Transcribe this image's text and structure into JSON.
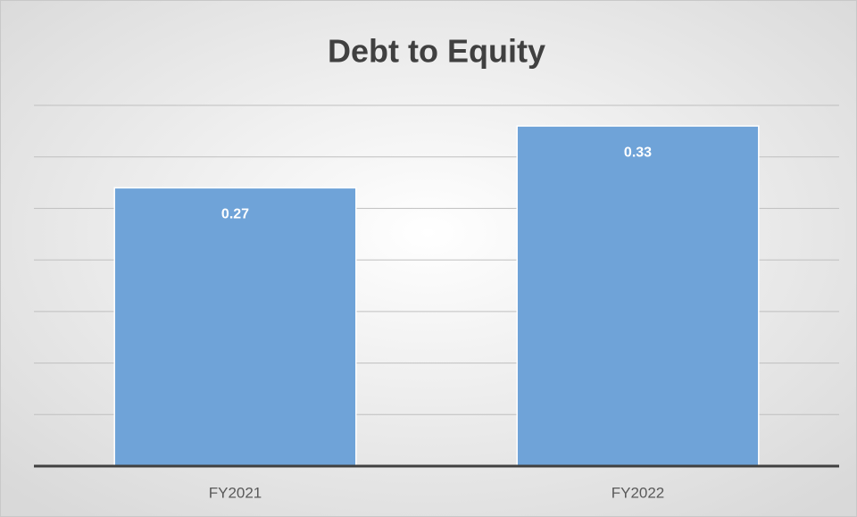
{
  "chart_data": {
    "type": "bar",
    "title": "Debt to Equity",
    "categories": [
      "FY2021",
      "FY2022"
    ],
    "values": [
      0.27,
      0.33
    ],
    "color": "#6fa3d8",
    "ylim": [
      0,
      0.35
    ],
    "yticks": [
      0,
      0.05,
      0.1,
      0.15,
      0.2,
      0.25,
      0.3,
      0.35
    ],
    "grid": true
  }
}
